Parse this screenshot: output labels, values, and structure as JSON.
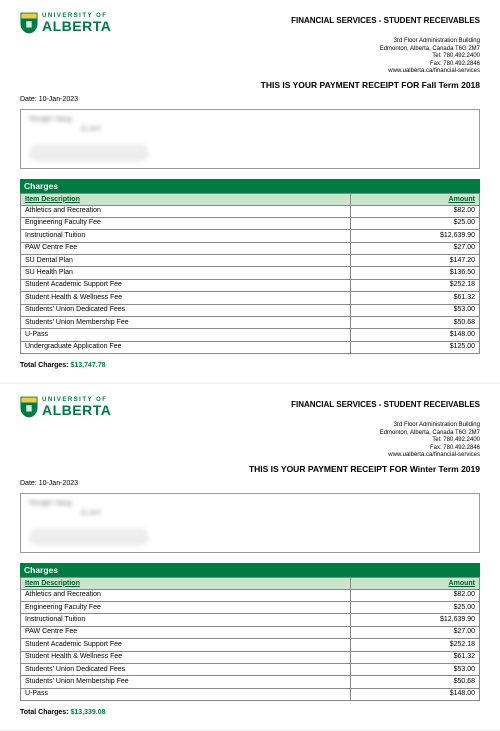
{
  "brand": {
    "line1": "UNIVERSITY OF",
    "line2": "ALBERTA",
    "shield_green": "#007c41",
    "shield_gold": "#f2c94c"
  },
  "department": "FINANCIAL SERVICES - STUDENT RECEIVABLES",
  "address": {
    "l1": "3rd Floor Administration Building",
    "l2": "Edmonton, Alberta, Canada T6G 2M7",
    "l3": "Tel: 780.492.2400",
    "l4": "Fax: 780.492.2846",
    "l5": "www.ualberta.ca/financial-services"
  },
  "date_label": "Date:",
  "date_value": "10-Jan-2023",
  "charges_header": "Charges",
  "col_desc": "Item Description",
  "col_amount": "Amount",
  "total_label": "Total Charges:",
  "recipient_hint1": "Honglin Jiang",
  "recipient_hint2": "G 1H7",
  "receipts": [
    {
      "title": "THIS IS YOUR PAYMENT RECEIPT FOR Fall Term 2018",
      "rows": [
        {
          "desc": "Athletics and Recreation",
          "amount": "$82.00"
        },
        {
          "desc": "Engineering Faculty Fee",
          "amount": "$25.00"
        },
        {
          "desc": "Instructional Tuition",
          "amount": "$12,639.90"
        },
        {
          "desc": "PAW Centre Fee",
          "amount": "$27.00"
        },
        {
          "desc": "SU Dental Plan",
          "amount": "$147.20"
        },
        {
          "desc": "SU Health Plan",
          "amount": "$136.50"
        },
        {
          "desc": "Student Academic Support Fee",
          "amount": "$252.18"
        },
        {
          "desc": "Student Health & Wellness Fee",
          "amount": "$61.32"
        },
        {
          "desc": "Students' Union Dedicated Fees",
          "amount": "$53.00"
        },
        {
          "desc": "Students' Union Membership Fee",
          "amount": "$50.68"
        },
        {
          "desc": "U-Pass",
          "amount": "$148.00"
        },
        {
          "desc": "Undergraduate Application Fee",
          "amount": "$125.00"
        }
      ],
      "total": "$13,747.78"
    },
    {
      "title": "THIS IS YOUR PAYMENT RECEIPT FOR Winter Term 2019",
      "rows": [
        {
          "desc": "Athletics and Recreation",
          "amount": "$82.00"
        },
        {
          "desc": "Engineering Faculty Fee",
          "amount": "$25.00"
        },
        {
          "desc": "Instructional Tuition",
          "amount": "$12,639.90"
        },
        {
          "desc": "PAW Centre Fee",
          "amount": "$27.00"
        },
        {
          "desc": "Student Academic Support Fee",
          "amount": "$252.18"
        },
        {
          "desc": "Student Health & Wellness Fee",
          "amount": "$61.32"
        },
        {
          "desc": "Students' Union Dedicated Fees",
          "amount": "$53.00"
        },
        {
          "desc": "Students' Union Membership Fee",
          "amount": "$50.68"
        },
        {
          "desc": "U-Pass",
          "amount": "$148.00"
        }
      ],
      "total": "$13,339.08"
    }
  ]
}
